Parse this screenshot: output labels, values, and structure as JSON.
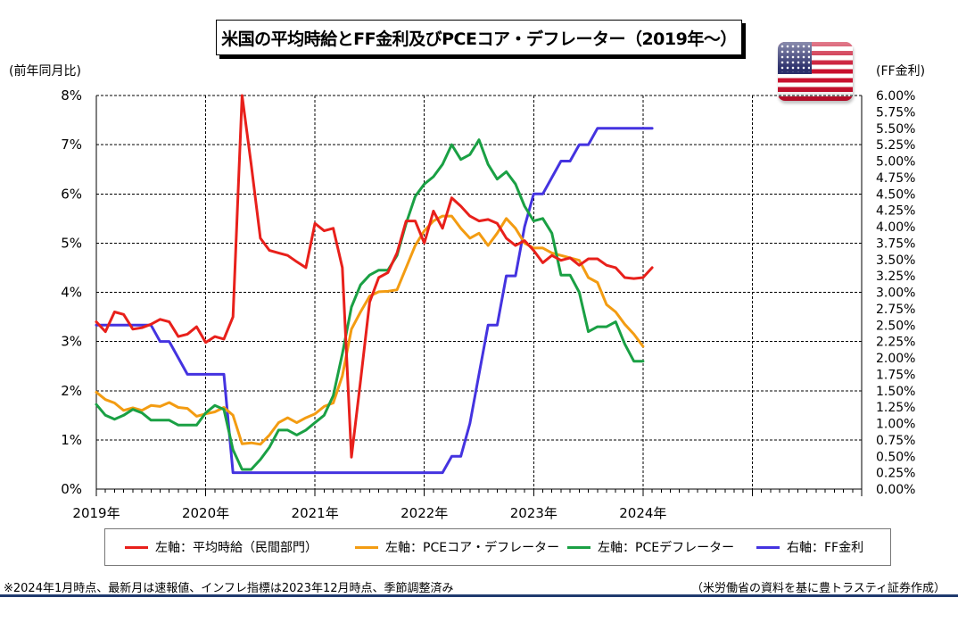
{
  "chart_data": {
    "type": "line",
    "title": "米国の平均時給とFF金利及びPCEコア・デフレーター（2019年～）",
    "ylabel_left": "(前年同月比)",
    "ylabel_right": "(FF金利)",
    "y_left_ticks": [
      "0%",
      "1%",
      "2%",
      "3%",
      "4%",
      "5%",
      "6%",
      "7%",
      "8%"
    ],
    "y_right_ticks": [
      "0.00%",
      "0.25%",
      "0.50%",
      "0.75%",
      "1.00%",
      "1.25%",
      "1.50%",
      "1.75%",
      "2.00%",
      "2.25%",
      "2.50%",
      "2.75%",
      "3.00%",
      "3.25%",
      "3.50%",
      "3.75%",
      "4.00%",
      "4.25%",
      "4.50%",
      "4.75%",
      "5.00%",
      "5.25%",
      "5.50%",
      "5.75%",
      "6.00%"
    ],
    "x_ticks": [
      "2019年",
      "2020年",
      "2021年",
      "2022年",
      "2023年",
      "2024年"
    ],
    "ylim_left": [
      0,
      8
    ],
    "ylim_right": [
      0,
      6
    ],
    "grid": true,
    "series": [
      {
        "name": "左軸：平均時給（民間部門）",
        "axis": "left",
        "color": "#e8201b",
        "x_start": "2019-01",
        "values": [
          3.4,
          3.2,
          3.6,
          3.55,
          3.25,
          3.28,
          3.35,
          3.45,
          3.4,
          3.1,
          3.15,
          3.3,
          2.98,
          3.1,
          3.05,
          3.5,
          8.0,
          6.6,
          5.1,
          4.85,
          4.8,
          4.75,
          4.62,
          4.5,
          5.4,
          5.25,
          5.3,
          4.5,
          0.65,
          2.2,
          3.8,
          4.3,
          4.4,
          4.8,
          5.45,
          5.45,
          5.0,
          5.65,
          5.3,
          5.92,
          5.75,
          5.55,
          5.45,
          5.48,
          5.4,
          5.1,
          4.95,
          5.05,
          4.85,
          4.6,
          4.75,
          4.65,
          4.7,
          4.55,
          4.68,
          4.68,
          4.55,
          4.5,
          4.3,
          4.28,
          4.3,
          4.5
        ]
      },
      {
        "name": "左軸：PCEコア・デフレーター",
        "axis": "left",
        "color": "#f39c12",
        "x_start": "2019-01",
        "values": [
          1.97,
          1.82,
          1.75,
          1.6,
          1.65,
          1.6,
          1.7,
          1.68,
          1.76,
          1.66,
          1.64,
          1.48,
          1.53,
          1.57,
          1.66,
          1.5,
          0.92,
          0.94,
          0.91,
          1.1,
          1.35,
          1.45,
          1.35,
          1.45,
          1.53,
          1.68,
          1.75,
          2.3,
          3.25,
          3.6,
          3.92,
          4.01,
          4.02,
          4.05,
          4.5,
          4.95,
          5.25,
          5.45,
          5.55,
          5.55,
          5.3,
          5.1,
          5.2,
          4.95,
          5.2,
          5.5,
          5.3,
          5.0,
          4.9,
          4.9,
          4.8,
          4.75,
          4.7,
          4.65,
          4.3,
          4.2,
          3.75,
          3.6,
          3.35,
          3.15,
          2.9
        ]
      },
      {
        "name": "左軸：PCEデフレーター",
        "axis": "left",
        "color": "#1aa044",
        "x_start": "2019-01",
        "values": [
          1.72,
          1.5,
          1.42,
          1.5,
          1.62,
          1.55,
          1.4,
          1.4,
          1.4,
          1.3,
          1.3,
          1.3,
          1.55,
          1.7,
          1.62,
          0.8,
          0.4,
          0.4,
          0.6,
          0.85,
          1.2,
          1.2,
          1.1,
          1.2,
          1.35,
          1.5,
          1.9,
          2.75,
          3.7,
          4.15,
          4.35,
          4.45,
          4.45,
          4.75,
          5.4,
          5.95,
          6.2,
          6.35,
          6.6,
          7.0,
          6.7,
          6.8,
          7.1,
          6.6,
          6.3,
          6.45,
          6.2,
          5.75,
          5.45,
          5.5,
          5.2,
          4.35,
          4.35,
          4.0,
          3.2,
          3.3,
          3.3,
          3.4,
          2.95,
          2.6,
          2.6
        ]
      },
      {
        "name": "右軸：FF金利",
        "axis": "right",
        "color": "#4433e0",
        "x_start": "2019-01",
        "values": [
          2.5,
          2.5,
          2.5,
          2.5,
          2.5,
          2.5,
          2.5,
          2.25,
          2.25,
          2.0,
          1.75,
          1.75,
          1.75,
          1.75,
          1.75,
          0.25,
          0.25,
          0.25,
          0.25,
          0.25,
          0.25,
          0.25,
          0.25,
          0.25,
          0.25,
          0.25,
          0.25,
          0.25,
          0.25,
          0.25,
          0.25,
          0.25,
          0.25,
          0.25,
          0.25,
          0.25,
          0.25,
          0.25,
          0.25,
          0.5,
          0.5,
          1.0,
          1.75,
          2.5,
          2.5,
          3.25,
          3.25,
          4.0,
          4.5,
          4.5,
          4.75,
          5.0,
          5.0,
          5.25,
          5.25,
          5.5,
          5.5,
          5.5,
          5.5,
          5.5,
          5.5,
          5.5
        ]
      }
    ]
  },
  "legend": {
    "items": [
      {
        "label": "左軸：平均時給（民間部門）",
        "color": "#e8201b"
      },
      {
        "label": "左軸：PCEコア・デフレーター",
        "color": "#f39c12"
      },
      {
        "label": "左軸：PCEデフレーター",
        "color": "#1aa044"
      },
      {
        "label": "右軸：FF金利",
        "color": "#4433e0"
      }
    ]
  },
  "footnote": "※2024年1月時点、最新月は速報値、インフレ指標は2023年12月時点、季節調整済み",
  "source": "（米労働省の資料を基に豊トラスティ証券作成）",
  "flag_icon": "us-flag-icon"
}
